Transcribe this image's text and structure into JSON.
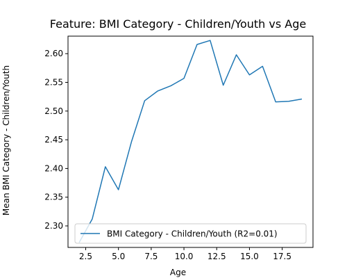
{
  "chart_data": {
    "type": "line",
    "title": "Feature: BMI Category - Children/Youth vs Age",
    "xlabel": "Age",
    "ylabel": "Mean BMI Category - Children/Youth",
    "xlim": [
      1.15,
      19.85
    ],
    "ylim": [
      2.2625,
      2.6305
    ],
    "xticks": [
      "2.5",
      "5.0",
      "7.5",
      "10.0",
      "12.5",
      "15.0",
      "17.5"
    ],
    "yticks": [
      "2.30",
      "2.35",
      "2.40",
      "2.45",
      "2.50",
      "2.55",
      "2.60"
    ],
    "legend_position": "lower-right",
    "grid": false,
    "series": [
      {
        "name": "BMI Category - Children/Youth (R2=0.01)",
        "color": "#1f77b4",
        "x": [
          2,
          3,
          4,
          5,
          6,
          7,
          8,
          9,
          10,
          11,
          12,
          13,
          14,
          15,
          16,
          17,
          18,
          19
        ],
        "y": [
          2.271,
          2.312,
          2.403,
          2.363,
          2.447,
          2.518,
          2.535,
          2.544,
          2.557,
          2.616,
          2.623,
          2.545,
          2.598,
          2.563,
          2.578,
          2.516,
          2.517,
          2.521
        ]
      }
    ]
  }
}
